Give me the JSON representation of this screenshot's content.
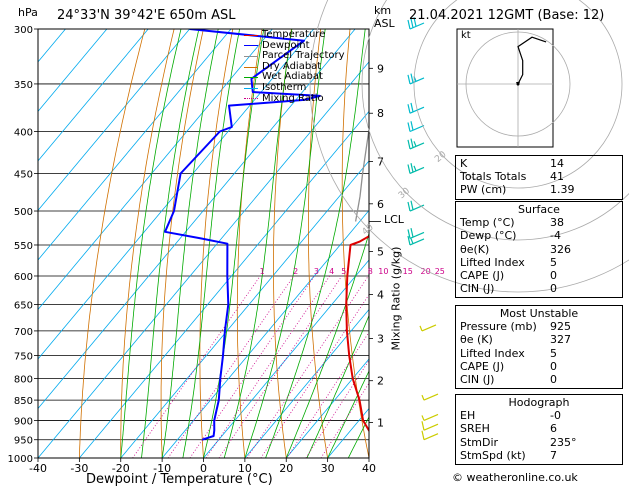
{
  "header": {
    "location": "24°33'N  39°42'E  650m  ASL",
    "datetime": "21.04.2021  12GMT  (Base: 12)"
  },
  "axis_labels": {
    "pressure_unit": "hPa",
    "height_unit_km": "km",
    "height_unit_asl": "ASL",
    "mixing_ratio": "Mixing Ratio (g/kg)",
    "x_title": "Dewpoint / Temperature (°C)",
    "lcl": "LCL"
  },
  "legend": [
    {
      "label": "Temperature",
      "color": "#dd0000"
    },
    {
      "label": "Dewpoint",
      "color": "#0000ff"
    },
    {
      "label": "Parcel Trajectory",
      "color": "#909090"
    },
    {
      "label": "Dry Adiabat",
      "color": "#d07000"
    },
    {
      "label": "Wet Adiabat",
      "color": "#00aa00"
    },
    {
      "label": "Isotherm",
      "color": "#00aaee"
    },
    {
      "label": "Mixing Ratio",
      "color": "#cc0088"
    }
  ],
  "hodograph": {
    "unit": "kt",
    "rings": [
      "10",
      "20",
      "30",
      "40"
    ]
  },
  "indices": [
    {
      "label": "K",
      "value": "14"
    },
    {
      "label": "Totals Totals",
      "value": "41"
    },
    {
      "label": "PW (cm)",
      "value": "1.39"
    }
  ],
  "surface": {
    "title": "Surface",
    "rows": [
      {
        "label": "Temp (°C)",
        "value": "38"
      },
      {
        "label": "Dewp (°C)",
        "value": "-4"
      },
      {
        "label": "θe(K)",
        "value": "326"
      },
      {
        "label": "Lifted Index",
        "value": "5"
      },
      {
        "label": "CAPE (J)",
        "value": "0"
      },
      {
        "label": "CIN (J)",
        "value": "0"
      }
    ]
  },
  "most_unstable": {
    "title": "Most Unstable",
    "rows": [
      {
        "label": "Pressure (mb)",
        "value": "925"
      },
      {
        "label": "θe (K)",
        "value": "327"
      },
      {
        "label": "Lifted Index",
        "value": "5"
      },
      {
        "label": "CAPE (J)",
        "value": "0"
      },
      {
        "label": "CIN (J)",
        "value": "0"
      }
    ]
  },
  "hodograph_table": {
    "title": "Hodograph",
    "rows": [
      {
        "label": "EH",
        "value": "-0"
      },
      {
        "label": "SREH",
        "value": "6"
      },
      {
        "label": "StmDir",
        "value": "235°"
      },
      {
        "label": "StmSpd (kt)",
        "value": "7"
      }
    ]
  },
  "footer": "© weatheronline.co.uk",
  "chart_data": {
    "type": "line",
    "subtype": "skew-T log-P",
    "xlabel": "Dewpoint / Temperature (°C)",
    "ylabel": "hPa",
    "xlim": [
      -40,
      40
    ],
    "ylim": [
      1000,
      300
    ],
    "x_ticks": [
      "-40",
      "-30",
      "-20",
      "-10",
      "0",
      "10",
      "20",
      "30",
      "40"
    ],
    "pressure_levels": [
      "300",
      "350",
      "400",
      "450",
      "500",
      "550",
      "600",
      "650",
      "700",
      "750",
      "800",
      "850",
      "900",
      "950",
      "1000"
    ],
    "height_ticks_km": [
      {
        "label": "1",
        "p": 905
      },
      {
        "label": "2",
        "p": 805
      },
      {
        "label": "3",
        "p": 715
      },
      {
        "label": "4",
        "p": 632
      },
      {
        "label": "5",
        "p": 560
      },
      {
        "label": "6",
        "p": 490
      },
      {
        "label": "7",
        "p": 435
      },
      {
        "label": "8",
        "p": 380
      },
      {
        "label": "9",
        "p": 335
      }
    ],
    "lcl_p": 515,
    "mixing_ratio_labels": [
      "1",
      "2",
      "3",
      "4",
      "5",
      "8",
      "10",
      "15",
      "20",
      "25"
    ],
    "series": [
      {
        "name": "Temperature",
        "color": "#dd0000",
        "points": [
          [
            950,
            38
          ],
          [
            930,
            35
          ],
          [
            900,
            31
          ],
          [
            850,
            26
          ],
          [
            800,
            20
          ],
          [
            750,
            14.5
          ],
          [
            700,
            9
          ],
          [
            650,
            3.5
          ],
          [
            600,
            -2
          ],
          [
            550,
            -7.5
          ],
          [
            545,
            -6
          ],
          [
            535,
            -4.5
          ],
          [
            500,
            -9
          ],
          [
            450,
            -15
          ],
          [
            400,
            -21.5
          ],
          [
            350,
            -28
          ],
          [
            320,
            -33
          ],
          [
            300,
            -36
          ]
        ]
      },
      {
        "name": "Dewpoint",
        "color": "#0000ff",
        "points": [
          [
            950,
            -4
          ],
          [
            940,
            -2
          ],
          [
            925,
            -3
          ],
          [
            900,
            -5
          ],
          [
            850,
            -8
          ],
          [
            800,
            -12
          ],
          [
            750,
            -16
          ],
          [
            700,
            -20.5
          ],
          [
            650,
            -25
          ],
          [
            600,
            -31
          ],
          [
            548,
            -37.5
          ],
          [
            540,
            -45
          ],
          [
            530,
            -55
          ],
          [
            500,
            -57
          ],
          [
            450,
            -63
          ],
          [
            400,
            -62
          ],
          [
            395,
            -60
          ],
          [
            372,
            -65
          ],
          [
            366,
            -48
          ],
          [
            362,
            -45
          ],
          [
            358,
            -62
          ],
          [
            345,
            -65
          ],
          [
            310,
            -60
          ],
          [
            300,
            -90
          ]
        ]
      },
      {
        "name": "Parcel Trajectory",
        "color": "#909090",
        "points": [
          [
            515,
            -11
          ],
          [
            480,
            -15
          ],
          [
            450,
            -19
          ],
          [
            400,
            -26
          ],
          [
            350,
            -34
          ],
          [
            320,
            -39
          ],
          [
            300,
            -43
          ]
        ]
      }
    ],
    "wind_barbs": [
      {
        "p": 950,
        "speed": 10
      },
      {
        "p": 925,
        "speed": 10
      },
      {
        "p": 900,
        "speed": 5
      },
      {
        "p": 850,
        "speed": 5
      },
      {
        "p": 700,
        "speed": 5
      },
      {
        "p": 550,
        "speed": 15
      },
      {
        "p": 540,
        "speed": 20
      },
      {
        "p": 500,
        "speed": 20
      },
      {
        "p": 450,
        "speed": 25
      },
      {
        "p": 420,
        "speed": 25
      },
      {
        "p": 400,
        "speed": 20
      },
      {
        "p": 380,
        "speed": 20
      },
      {
        "p": 350,
        "speed": 25
      },
      {
        "p": 300,
        "speed": 30
      }
    ],
    "hodograph_trace_kt": [
      [
        0,
        0
      ],
      [
        1,
        -2
      ],
      [
        1,
        -5
      ],
      [
        0,
        -8
      ],
      [
        3,
        -10
      ],
      [
        6,
        -9
      ]
    ]
  }
}
